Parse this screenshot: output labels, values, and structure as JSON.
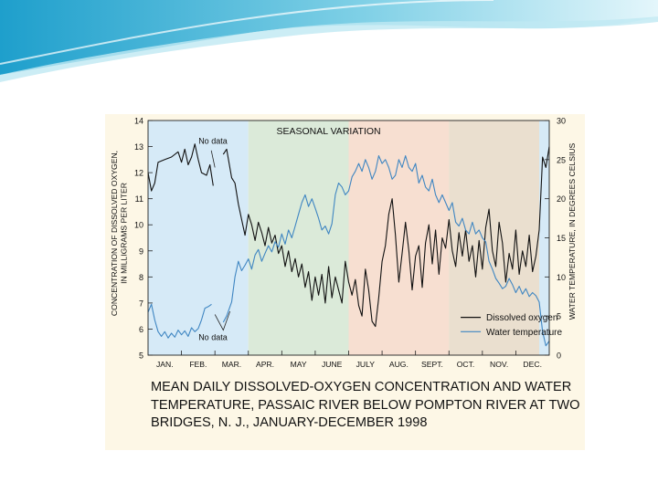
{
  "slide": {
    "header_colors": [
      "#2aa7cf",
      "#7fd0e6",
      "#c9ecf5"
    ]
  },
  "caption": {
    "text": "MEAN DAILY DISSOLVED-OXYGEN CONCENTRATION AND WATER TEMPERATURE, PASSAIC RIVER BELOW POMPTON RIVER AT TWO BRIDGES, N. J., JANUARY-DECEMBER 1998"
  },
  "chart_data": {
    "type": "line",
    "title": "SEASONAL VARIATION",
    "ylabel": "CONCENTRATION OF DISSOLVED OXYGEN, IN MILLIGRAMS PER LITER",
    "y2label": "WATER TEMPERATURE, IN DEGREES CELSIUS",
    "ylim": [
      5,
      14
    ],
    "y2lim": [
      0,
      30
    ],
    "yticks": [
      5,
      6,
      7,
      8,
      9,
      10,
      11,
      12,
      13,
      14
    ],
    "y2ticks": [
      0,
      5,
      10,
      15,
      20,
      25,
      30
    ],
    "months": [
      "JAN.",
      "FEB.",
      "MAR.",
      "APR.",
      "MAY",
      "JUNE",
      "JULY",
      "AUG.",
      "SEPT.",
      "OCT.",
      "NOV.",
      "DEC."
    ],
    "legend_position": "lower-right",
    "grid": false,
    "seasons": [
      {
        "start_month": 0,
        "end_month": 3,
        "color": "#d6eaf7"
      },
      {
        "start_month": 3,
        "end_month": 6,
        "color": "#dbead9"
      },
      {
        "start_month": 6,
        "end_month": 9,
        "color": "#f7dfd1"
      },
      {
        "start_month": 9,
        "end_month": 11.7,
        "color": "#eadfcf"
      },
      {
        "start_month": 11.7,
        "end_month": 12,
        "color": "#d6eaf7"
      }
    ],
    "annotations": [
      {
        "text": "No data",
        "series": "Dissolved oxygen",
        "month": 1.7
      },
      {
        "text": "No data",
        "series": "Water temperature",
        "month": 1.7
      }
    ],
    "series": [
      {
        "name": "Dissolved oxygen",
        "axis": "left",
        "color": "#111111",
        "segments": [
          [
            [
              0.0,
              12.0
            ],
            [
              0.1,
              11.3
            ],
            [
              0.2,
              11.6
            ],
            [
              0.3,
              12.4
            ],
            [
              0.5,
              12.5
            ],
            [
              0.7,
              12.6
            ],
            [
              0.9,
              12.8
            ],
            [
              1.0,
              12.4
            ],
            [
              1.1,
              12.9
            ],
            [
              1.2,
              12.3
            ],
            [
              1.3,
              12.6
            ],
            [
              1.4,
              13.1
            ],
            [
              1.5,
              12.5
            ],
            [
              1.6,
              12.0
            ],
            [
              1.75,
              11.9
            ],
            [
              1.85,
              12.3
            ],
            [
              1.95,
              11.5
            ]
          ],
          [
            [
              2.25,
              12.7
            ],
            [
              2.35,
              12.9
            ],
            [
              2.5,
              11.8
            ],
            [
              2.6,
              11.6
            ],
            [
              2.7,
              10.8
            ],
            [
              2.8,
              10.2
            ],
            [
              2.9,
              9.6
            ],
            [
              3.0,
              10.4
            ],
            [
              3.1,
              10.0
            ],
            [
              3.2,
              9.4
            ],
            [
              3.3,
              10.1
            ],
            [
              3.4,
              9.7
            ],
            [
              3.5,
              9.2
            ],
            [
              3.6,
              9.9
            ],
            [
              3.7,
              9.3
            ],
            [
              3.8,
              9.6
            ],
            [
              3.9,
              8.9
            ],
            [
              4.0,
              9.2
            ],
            [
              4.1,
              8.4
            ],
            [
              4.2,
              9.0
            ],
            [
              4.3,
              8.2
            ],
            [
              4.4,
              8.7
            ],
            [
              4.5,
              8.0
            ],
            [
              4.6,
              8.5
            ],
            [
              4.7,
              7.6
            ],
            [
              4.8,
              8.2
            ],
            [
              4.9,
              7.1
            ],
            [
              5.0,
              8.0
            ],
            [
              5.1,
              7.3
            ],
            [
              5.2,
              8.1
            ],
            [
              5.3,
              7.0
            ],
            [
              5.4,
              8.4
            ],
            [
              5.5,
              7.2
            ],
            [
              5.6,
              8.0
            ],
            [
              5.7,
              7.5
            ],
            [
              5.8,
              7.0
            ],
            [
              5.9,
              8.6
            ],
            [
              6.0,
              7.8
            ],
            [
              6.1,
              7.3
            ],
            [
              6.2,
              7.9
            ],
            [
              6.3,
              6.9
            ],
            [
              6.4,
              6.5
            ],
            [
              6.5,
              8.3
            ],
            [
              6.6,
              7.5
            ],
            [
              6.7,
              6.3
            ],
            [
              6.8,
              6.1
            ],
            [
              6.9,
              7.2
            ],
            [
              7.0,
              8.6
            ],
            [
              7.1,
              9.2
            ],
            [
              7.2,
              10.4
            ],
            [
              7.3,
              11.0
            ],
            [
              7.4,
              9.6
            ],
            [
              7.5,
              7.8
            ],
            [
              7.6,
              8.9
            ],
            [
              7.7,
              10.1
            ],
            [
              7.8,
              9.0
            ],
            [
              7.9,
              7.5
            ],
            [
              8.0,
              8.8
            ],
            [
              8.1,
              9.2
            ],
            [
              8.2,
              7.6
            ],
            [
              8.3,
              9.3
            ],
            [
              8.4,
              10.0
            ],
            [
              8.5,
              8.5
            ],
            [
              8.6,
              9.8
            ],
            [
              8.7,
              8.1
            ],
            [
              8.8,
              9.5
            ],
            [
              8.9,
              9.1
            ],
            [
              9.0,
              10.2
            ],
            [
              9.1,
              9.0
            ],
            [
              9.2,
              8.4
            ],
            [
              9.3,
              9.7
            ],
            [
              9.4,
              8.8
            ],
            [
              9.5,
              9.8
            ],
            [
              9.6,
              8.6
            ],
            [
              9.7,
              9.2
            ],
            [
              9.8,
              8.0
            ],
            [
              9.9,
              9.4
            ],
            [
              10.0,
              8.3
            ],
            [
              10.1,
              9.9
            ],
            [
              10.2,
              10.6
            ],
            [
              10.3,
              9.0
            ],
            [
              10.4,
              8.4
            ],
            [
              10.5,
              10.1
            ],
            [
              10.6,
              9.3
            ],
            [
              10.7,
              7.8
            ],
            [
              10.8,
              8.9
            ],
            [
              10.9,
              8.3
            ],
            [
              11.0,
              9.8
            ],
            [
              11.1,
              8.1
            ],
            [
              11.2,
              9.0
            ],
            [
              11.3,
              8.4
            ],
            [
              11.4,
              9.6
            ],
            [
              11.5,
              8.2
            ],
            [
              11.6,
              8.8
            ],
            [
              11.7,
              9.8
            ],
            [
              11.8,
              12.6
            ],
            [
              11.9,
              12.2
            ],
            [
              12.0,
              13.0
            ]
          ]
        ]
      },
      {
        "name": "Water temperature",
        "axis": "right",
        "color": "#3f86c2",
        "segments": [
          [
            [
              0.0,
              5.5
            ],
            [
              0.1,
              6.5
            ],
            [
              0.2,
              4.5
            ],
            [
              0.3,
              3.0
            ],
            [
              0.4,
              2.4
            ],
            [
              0.5,
              3.0
            ],
            [
              0.6,
              2.2
            ],
            [
              0.7,
              2.8
            ],
            [
              0.8,
              2.3
            ],
            [
              0.9,
              3.2
            ],
            [
              1.0,
              2.6
            ],
            [
              1.1,
              3.1
            ],
            [
              1.2,
              2.4
            ],
            [
              1.3,
              3.5
            ],
            [
              1.4,
              3.0
            ],
            [
              1.5,
              3.4
            ],
            [
              1.6,
              4.5
            ],
            [
              1.7,
              6.0
            ],
            [
              1.8,
              6.2
            ],
            [
              1.9,
              6.5
            ]
          ],
          [
            [
              2.25,
              4.2
            ],
            [
              2.35,
              5.0
            ],
            [
              2.5,
              6.8
            ],
            [
              2.6,
              10.0
            ],
            [
              2.7,
              12.0
            ],
            [
              2.8,
              10.8
            ],
            [
              2.9,
              11.5
            ],
            [
              3.0,
              12.3
            ],
            [
              3.1,
              11.0
            ],
            [
              3.2,
              12.8
            ],
            [
              3.3,
              13.5
            ],
            [
              3.4,
              12.0
            ],
            [
              3.5,
              13.0
            ],
            [
              3.6,
              14.0
            ],
            [
              3.7,
              13.2
            ],
            [
              3.8,
              14.5
            ],
            [
              3.9,
              13.8
            ],
            [
              4.0,
              15.5
            ],
            [
              4.1,
              14.2
            ],
            [
              4.2,
              16.0
            ],
            [
              4.3,
              15.0
            ],
            [
              4.4,
              16.5
            ],
            [
              4.5,
              18.0
            ],
            [
              4.6,
              19.5
            ],
            [
              4.7,
              20.5
            ],
            [
              4.8,
              19.0
            ],
            [
              4.9,
              20.0
            ],
            [
              5.0,
              18.8
            ],
            [
              5.1,
              17.5
            ],
            [
              5.2,
              16.0
            ],
            [
              5.3,
              16.5
            ],
            [
              5.4,
              15.5
            ],
            [
              5.5,
              16.8
            ],
            [
              5.6,
              20.5
            ],
            [
              5.7,
              22.0
            ],
            [
              5.8,
              21.5
            ],
            [
              5.9,
              20.5
            ],
            [
              6.0,
              21.0
            ],
            [
              6.1,
              22.8
            ],
            [
              6.2,
              23.5
            ],
            [
              6.3,
              24.5
            ],
            [
              6.4,
              23.5
            ],
            [
              6.5,
              25.0
            ],
            [
              6.6,
              24.0
            ],
            [
              6.7,
              22.5
            ],
            [
              6.8,
              23.5
            ],
            [
              6.9,
              25.5
            ],
            [
              7.0,
              24.5
            ],
            [
              7.1,
              25.0
            ],
            [
              7.2,
              24.0
            ],
            [
              7.3,
              22.5
            ],
            [
              7.4,
              23.0
            ],
            [
              7.5,
              25.0
            ],
            [
              7.6,
              24.0
            ],
            [
              7.7,
              25.5
            ],
            [
              7.8,
              24.0
            ],
            [
              7.9,
              23.5
            ],
            [
              8.0,
              24.5
            ],
            [
              8.1,
              22.0
            ],
            [
              8.2,
              23.0
            ],
            [
              8.3,
              21.5
            ],
            [
              8.4,
              21.0
            ],
            [
              8.5,
              22.5
            ],
            [
              8.6,
              20.5
            ],
            [
              8.7,
              19.5
            ],
            [
              8.8,
              20.5
            ],
            [
              8.9,
              19.5
            ],
            [
              9.0,
              18.5
            ],
            [
              9.1,
              19.5
            ],
            [
              9.2,
              17.0
            ],
            [
              9.3,
              16.5
            ],
            [
              9.4,
              17.5
            ],
            [
              9.5,
              16.0
            ],
            [
              9.6,
              15.5
            ],
            [
              9.7,
              17.0
            ],
            [
              9.8,
              15.5
            ],
            [
              9.9,
              16.0
            ],
            [
              10.0,
              15.0
            ],
            [
              10.1,
              14.5
            ],
            [
              10.2,
              12.0
            ],
            [
              10.3,
              11.0
            ],
            [
              10.4,
              9.8
            ],
            [
              10.5,
              9.2
            ],
            [
              10.6,
              8.5
            ],
            [
              10.7,
              8.8
            ],
            [
              10.8,
              9.8
            ],
            [
              10.9,
              9.0
            ],
            [
              11.0,
              8.0
            ],
            [
              11.1,
              8.8
            ],
            [
              11.2,
              7.8
            ],
            [
              11.3,
              8.5
            ],
            [
              11.4,
              7.5
            ],
            [
              11.5,
              8.0
            ],
            [
              11.6,
              7.6
            ],
            [
              11.7,
              6.8
            ],
            [
              11.8,
              3.0
            ],
            [
              11.9,
              1.2
            ],
            [
              12.0,
              1.8
            ]
          ]
        ]
      }
    ]
  }
}
